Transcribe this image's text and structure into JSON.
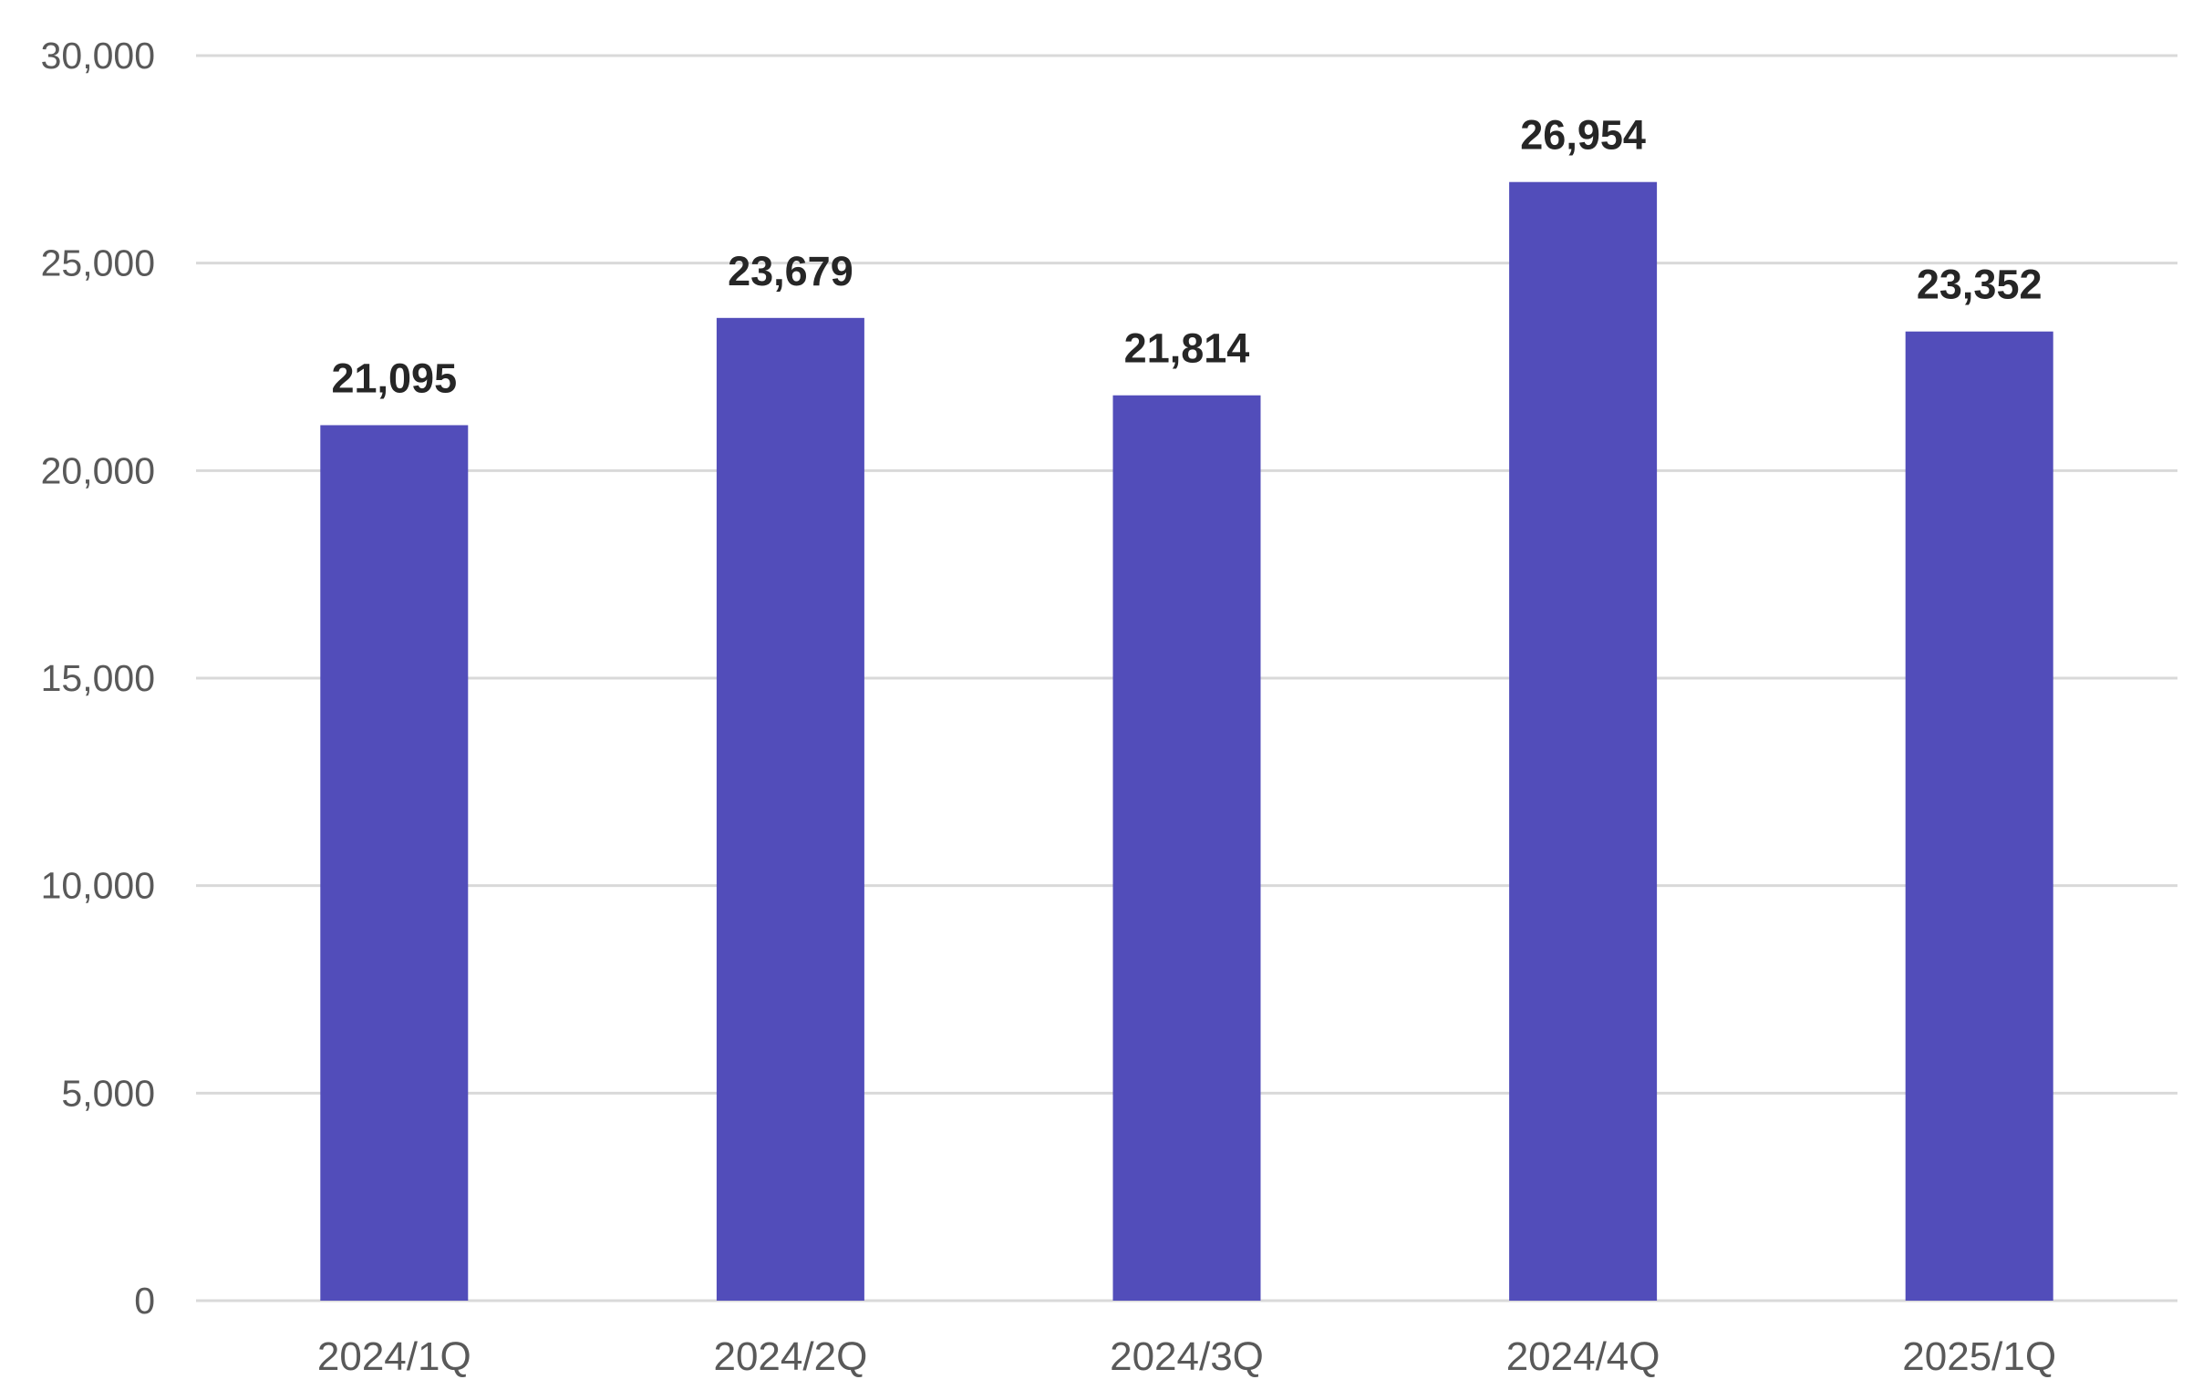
{
  "chart_data": {
    "type": "bar",
    "categories": [
      "2024/1Q",
      "2024/2Q",
      "2024/3Q",
      "2024/4Q",
      "2025/1Q"
    ],
    "values": [
      21095,
      23679,
      21814,
      26954,
      23352
    ],
    "data_labels": [
      "21,095",
      "23,679",
      "21,814",
      "26,954",
      "23,352"
    ],
    "title": "",
    "xlabel": "",
    "ylabel": "",
    "ylim": [
      0,
      30000
    ],
    "y_ticks": [
      0,
      5000,
      10000,
      15000,
      20000,
      25000,
      30000
    ],
    "y_tick_labels": [
      "0",
      "5,000",
      "10,000",
      "15,000",
      "20,000",
      "25,000",
      "30,000"
    ],
    "grid": true,
    "legend": "none",
    "bar_color": "#524dba",
    "grid_color": "#d9d9d9"
  }
}
